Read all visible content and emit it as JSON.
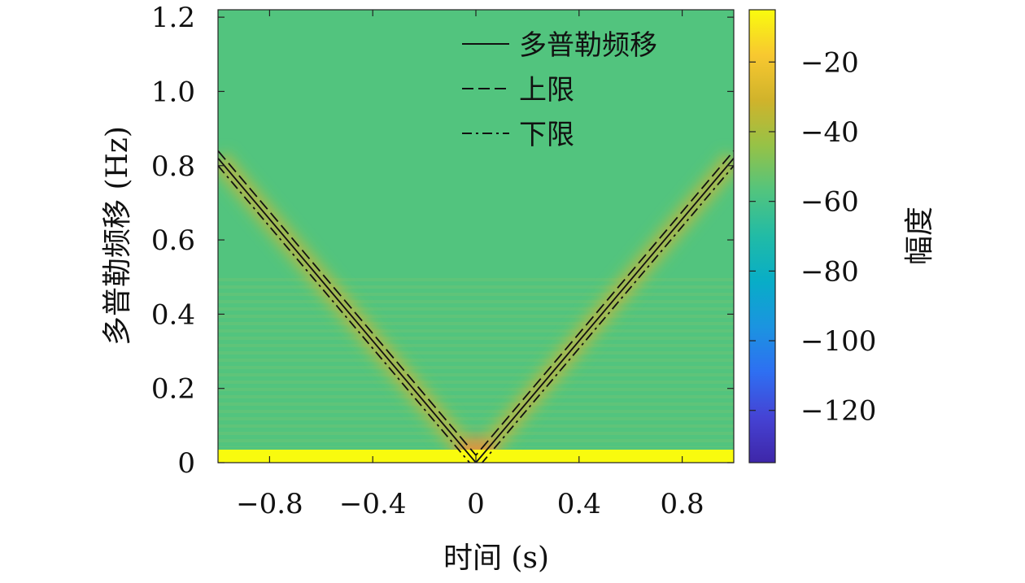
{
  "chart_data": {
    "type": "heatmap",
    "title": "",
    "xlabel": "时间 (s)",
    "ylabel": "多普勒频移 (Hz)",
    "xlim": [
      -1.0,
      1.0
    ],
    "ylim": [
      0,
      1.22
    ],
    "x_ticks": [
      -0.8,
      -0.4,
      0,
      0.4,
      0.8
    ],
    "x_tick_labels": [
      "−0.8",
      "−0.4",
      "0",
      "0.4",
      "0.8"
    ],
    "y_ticks": [
      0,
      0.2,
      0.4,
      0.6,
      0.8,
      1.0,
      1.2
    ],
    "y_tick_labels": [
      "0",
      "0.2",
      "0.4",
      "0.6",
      "0.8",
      "1.0",
      "1.2"
    ],
    "background_level_db": -60,
    "dc_band": {
      "f_max": 0.035,
      "level_db": -5
    },
    "colorbar": {
      "label": "幅度",
      "range": [
        -135,
        -5
      ],
      "ticks": [
        -20,
        -40,
        -60,
        -80,
        -100,
        -120
      ],
      "tick_labels": [
        "−20",
        "−40",
        "−60",
        "−80",
        "−100",
        "−120"
      ],
      "colormap": [
        "#3e26a8",
        "#4543d4",
        "#2e6ff2",
        "#1b94e0",
        "#08adc7",
        "#21bba6",
        "#52c47e",
        "#96c247",
        "#d0b32b",
        "#f8c830",
        "#f9fb0e"
      ]
    },
    "legend": {
      "position": "top-right",
      "entries": [
        "多普勒频移",
        "上限",
        "下限"
      ]
    },
    "series": [
      {
        "name": "多普勒频移",
        "style": "solid",
        "x": [
          -1.0,
          0.0,
          1.0
        ],
        "y": [
          0.82,
          0.0,
          0.82
        ]
      },
      {
        "name": "上限",
        "style": "dashed",
        "x": [
          -1.0,
          0.0,
          1.0
        ],
        "y": [
          0.84,
          0.02,
          0.84
        ]
      },
      {
        "name": "下限",
        "style": "dashdot",
        "x": [
          -1.0,
          0.0,
          1.0
        ],
        "y": [
          0.8,
          -0.02,
          0.8
        ]
      }
    ],
    "colors": {
      "line": "#111111",
      "legend_line": "#111111"
    }
  }
}
